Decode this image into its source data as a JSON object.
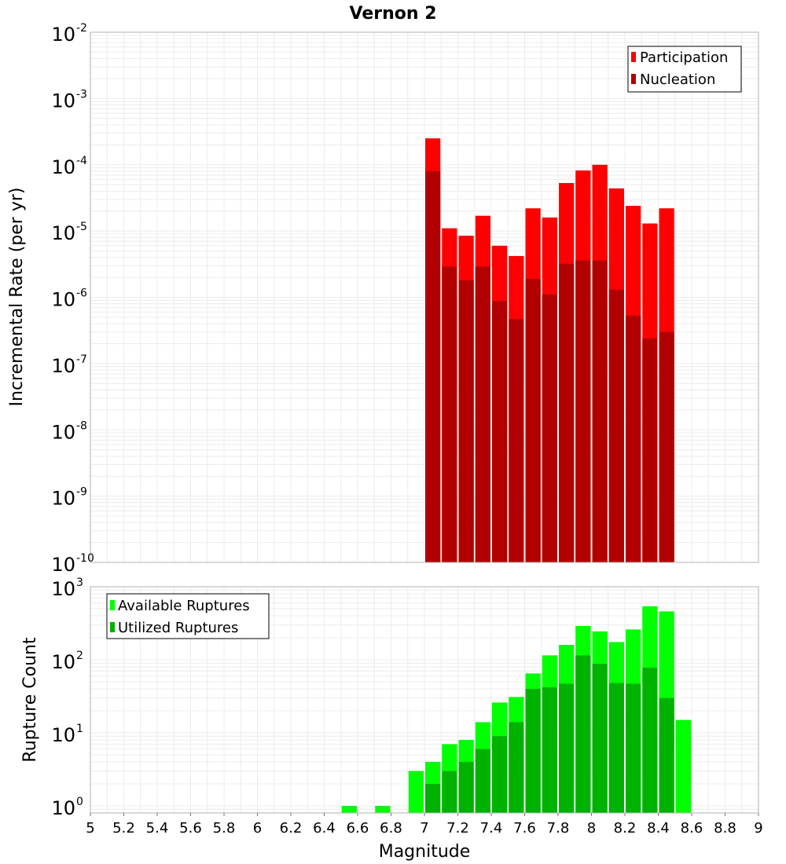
{
  "chart_data": [
    {
      "type": "bar",
      "title": "Vernon 2",
      "ylabel": "Incremental Rate (per yr)",
      "xlabel": "",
      "xlim": [
        5,
        9
      ],
      "ylim": [
        1e-10,
        0.01
      ],
      "yscale": "log",
      "y_tick_exponents": [
        "-2",
        "-3",
        "-4",
        "-5",
        "-6",
        "-7",
        "-8",
        "-9",
        "-10"
      ],
      "legend_position": "top-right",
      "legend": [
        "Participation",
        "Nucleation"
      ],
      "colors": {
        "Participation": "#ff0000",
        "Nucleation": "#b20000"
      },
      "x": [
        7.05,
        7.15,
        7.25,
        7.35,
        7.45,
        7.55,
        7.65,
        7.75,
        7.85,
        7.95,
        8.05,
        8.15,
        8.25,
        8.35,
        8.45
      ],
      "series": [
        {
          "name": "Participation",
          "values": [
            0.00025,
            1.1e-05,
            8.5e-06,
            1.7e-05,
            6e-06,
            4.2e-06,
            2.2e-05,
            1.6e-05,
            5.3e-05,
            8.2e-05,
            0.0001,
            4.4e-05,
            2.4e-05,
            1.3e-05,
            2.2e-05
          ]
        },
        {
          "name": "Nucleation",
          "values": [
            8e-05,
            2.9e-06,
            1.8e-06,
            2.9e-06,
            8.8e-07,
            4.7e-07,
            1.9e-06,
            1.1e-06,
            3.2e-06,
            3.6e-06,
            3.6e-06,
            1.3e-06,
            5.3e-07,
            2.4e-07,
            3e-07
          ]
        }
      ]
    },
    {
      "type": "bar",
      "title": "",
      "ylabel": "Rupture Count",
      "xlabel": "Magnitude",
      "xlim": [
        5,
        9
      ],
      "ylim": [
        0.8,
        1000
      ],
      "yscale": "log",
      "y_tick_exponents": [
        "3",
        "2",
        "1",
        "0"
      ],
      "x_tick_labels": [
        "5",
        "5.2",
        "5.4",
        "5.6",
        "5.8",
        "6",
        "6.2",
        "6.4",
        "6.6",
        "6.8",
        "7",
        "7.2",
        "7.4",
        "7.6",
        "7.8",
        "8",
        "8.2",
        "8.4",
        "8.6",
        "8.8",
        "9"
      ],
      "legend_position": "top-left",
      "legend": [
        "Available Ruptures",
        "Utilized Ruptures"
      ],
      "colors": {
        "Available Ruptures": "#00ff00",
        "Utilized Ruptures": "#00b200"
      },
      "x": [
        6.55,
        6.75,
        6.95,
        7.05,
        7.15,
        7.25,
        7.35,
        7.45,
        7.55,
        7.65,
        7.75,
        7.85,
        7.95,
        8.05,
        8.15,
        8.25,
        8.35,
        8.45,
        8.55
      ],
      "series": [
        {
          "name": "Available Ruptures",
          "values": [
            1,
            1,
            3,
            4,
            7,
            8,
            14,
            26,
            31,
            65,
            115,
            160,
            290,
            245,
            175,
            260,
            540,
            460,
            15
          ]
        },
        {
          "name": "Utilized Ruptures",
          "values": [
            null,
            null,
            null,
            2,
            3,
            4,
            6,
            9,
            14,
            40,
            42,
            47,
            115,
            88,
            48,
            47,
            78,
            30,
            null
          ]
        }
      ]
    }
  ]
}
